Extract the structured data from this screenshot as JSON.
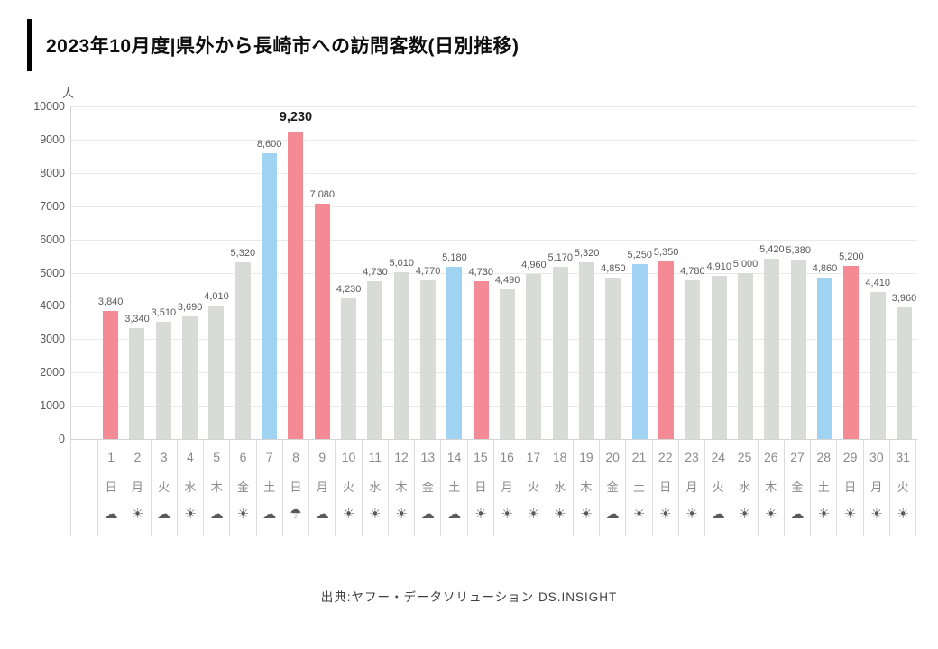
{
  "page": {
    "title": "2023年10月度|県外から長崎市への訪問客数(日別推移)",
    "source_caption": "出典:ヤフー・データソリューション DS.INSIGHT"
  },
  "chart_data": {
    "type": "bar",
    "title": "2023年10月度|県外から長崎市への訪問客数(日別推移)",
    "unit_label": "人",
    "ylabel": "人",
    "ylim": [
      0,
      10000
    ],
    "ytick_interval": 1000,
    "ytick_labels": [
      "0",
      "1000",
      "2000",
      "3000",
      "4000",
      "5000",
      "6000",
      "7000",
      "8000",
      "9000",
      "10000"
    ],
    "grid": true,
    "legend": "none",
    "categories": [
      "1",
      "2",
      "3",
      "4",
      "5",
      "6",
      "7",
      "8",
      "9",
      "10",
      "11",
      "12",
      "13",
      "14",
      "15",
      "16",
      "17",
      "18",
      "19",
      "20",
      "21",
      "22",
      "23",
      "24",
      "25",
      "26",
      "27",
      "28",
      "29",
      "30",
      "31"
    ],
    "weekdays": [
      "日",
      "月",
      "火",
      "水",
      "木",
      "金",
      "土",
      "日",
      "月",
      "火",
      "水",
      "木",
      "金",
      "土",
      "日",
      "月",
      "火",
      "水",
      "木",
      "金",
      "土",
      "日",
      "月",
      "火",
      "水",
      "木",
      "金",
      "土",
      "日",
      "月",
      "火"
    ],
    "weather": [
      "cloud",
      "sun",
      "cloud",
      "sun",
      "cloud",
      "sun",
      "cloud",
      "rain",
      "cloud",
      "sun",
      "sun",
      "sun",
      "cloud",
      "cloud",
      "sun",
      "sun",
      "sun",
      "sun",
      "sun",
      "cloud",
      "sun",
      "sun",
      "sun",
      "cloud",
      "sun",
      "sun",
      "cloud",
      "sun",
      "sun",
      "sun",
      "sun"
    ],
    "values": [
      3840,
      3340,
      3510,
      3690,
      4010,
      5320,
      8600,
      9230,
      7080,
      4230,
      4730,
      5010,
      4770,
      5180,
      4730,
      4490,
      4960,
      5170,
      5320,
      4850,
      5250,
      5350,
      4780,
      4910,
      5000,
      5420,
      5380,
      4860,
      5200,
      4410,
      3960
    ],
    "value_labels": [
      "3,840",
      "3,340",
      "3,510",
      "3,690",
      "4,010",
      "5,320",
      "8,600",
      "9,230",
      "7,080",
      "4,230",
      "4,730",
      "5,010",
      "4,770",
      "5,180",
      "4,730",
      "4,490",
      "4,960",
      "5,170",
      "5,320",
      "4,850",
      "5,250",
      "5,350",
      "4,780",
      "4,910",
      "5,000",
      "5,420",
      "5,380",
      "4,860",
      "5,200",
      "4,410",
      "3,960"
    ],
    "day_types": [
      "sun",
      "wd",
      "wd",
      "wd",
      "wd",
      "wd",
      "sat",
      "sun",
      "sun",
      "wd",
      "wd",
      "wd",
      "wd",
      "sat",
      "sun",
      "wd",
      "wd",
      "wd",
      "wd",
      "wd",
      "sat",
      "sun",
      "wd",
      "wd",
      "wd",
      "wd",
      "wd",
      "sat",
      "sun",
      "wd",
      "wd"
    ],
    "emphasized_index": 7,
    "colors": {
      "sunday_holiday": "#f48b94",
      "saturday": "#a0d3f2",
      "weekday": "#d9dbd9"
    },
    "weather_glyphs": {
      "sun": "☀",
      "cloud": "☁",
      "rain": "☂"
    }
  }
}
